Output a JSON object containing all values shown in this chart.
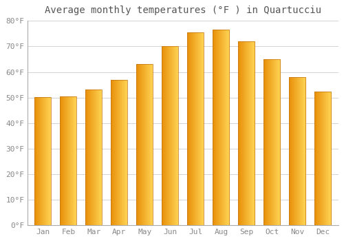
{
  "title": "Average monthly temperatures (°F ) in Quartucciu",
  "months": [
    "Jan",
    "Feb",
    "Mar",
    "Apr",
    "May",
    "Jun",
    "Jul",
    "Aug",
    "Sep",
    "Oct",
    "Nov",
    "Dec"
  ],
  "values": [
    50.1,
    50.5,
    53.0,
    57.0,
    63.2,
    70.2,
    75.6,
    76.6,
    72.1,
    65.0,
    58.0,
    52.2
  ],
  "bar_color_left": "#E8900A",
  "bar_color_right": "#FFD555",
  "bar_edge_color": "#C07010",
  "background_color": "#FFFFFF",
  "grid_color": "#CCCCCC",
  "text_color": "#888888",
  "title_color": "#555555",
  "ylim": [
    0,
    80
  ],
  "yticks": [
    0,
    10,
    20,
    30,
    40,
    50,
    60,
    70,
    80
  ],
  "title_fontsize": 10,
  "tick_fontsize": 8
}
